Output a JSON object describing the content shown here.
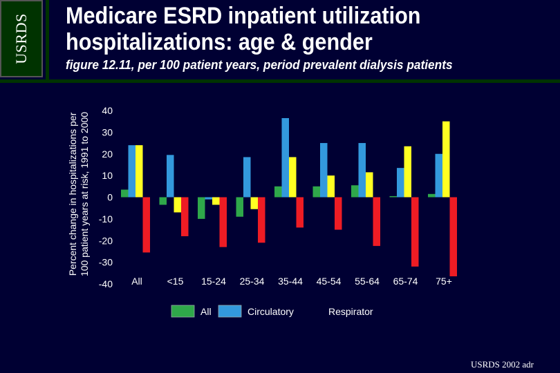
{
  "logo": {
    "text": "USRDS"
  },
  "header": {
    "title_line1": "Medicare ESRD inpatient utilization",
    "title_line2": "hospitalizations: age & gender",
    "subtitle": "figure 12.11, per 100 patient years, period prevalent dialysis patients"
  },
  "footer": {
    "text": "USRDS 2002 adr"
  },
  "colors": {
    "background": "#000033",
    "header_green": "#003300",
    "All": "#2fa84a",
    "Circulatory": "#3399dd",
    "Respirator": "#ffff22",
    "fourth_series": "#ee1c24"
  },
  "chart_data": {
    "type": "bar",
    "title": "",
    "xlabel": "",
    "ylabel_line1": "Percent change in hospitalizations per",
    "ylabel_line2": "100 patient years at risk, 1991 to 2000",
    "ylim": [
      -40,
      40
    ],
    "yticks": [
      40,
      30,
      20,
      10,
      0,
      -10,
      -20,
      -30,
      -40
    ],
    "ytick_labels": [
      "40",
      "30",
      "20",
      "10",
      "0",
      "-10",
      "-20",
      "-30",
      "-40"
    ],
    "categories": [
      "All",
      "<15",
      "15-24",
      "25-34",
      "35-44",
      "45-54",
      "55-64",
      "65-74",
      "75+"
    ],
    "series": [
      {
        "name": "All",
        "color": "#2fa84a",
        "values": [
          3.5,
          -3.5,
          -10,
          -9,
          5,
          5,
          5.5,
          0.5,
          1.5
        ]
      },
      {
        "name": "Circulatory",
        "color": "#3399dd",
        "values": [
          24,
          19.5,
          -1,
          18.5,
          36.5,
          25,
          25,
          13.5,
          20
        ]
      },
      {
        "name": "Respirator",
        "color": "#ffff22",
        "values": [
          24,
          -7,
          -3.5,
          -5.5,
          18.5,
          10,
          11.5,
          23.5,
          35
        ]
      },
      {
        "name": "",
        "color": "#ee1c24",
        "values": [
          -25.5,
          -18,
          -23,
          -21,
          -14,
          -15,
          -22.5,
          -32,
          -36.5
        ]
      }
    ],
    "legend": [
      "All",
      "Circulatory",
      "Respirator"
    ],
    "legend_position": "bottom"
  }
}
